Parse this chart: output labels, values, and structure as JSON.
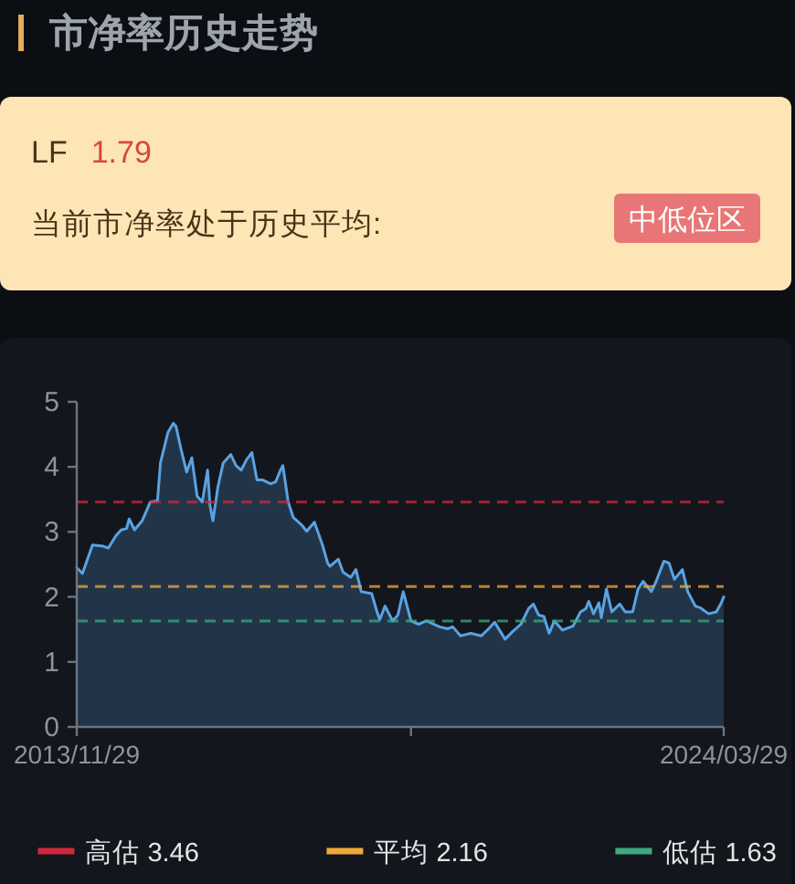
{
  "chart_data": {
    "type": "area",
    "title": "市净率历史走势",
    "annotations": [
      "LF",
      "1.79",
      "当前市净率处于历史平均:",
      "中低位区"
    ],
    "x": [
      "2013-11-29",
      "2014-01-01",
      "2014-03-01",
      "2014-05-01",
      "2014-06-01",
      "2014-07-15",
      "2014-08-15",
      "2014-09-15",
      "2014-10-01",
      "2014-11-01",
      "2014-12-15",
      "2015-02-01",
      "2015-03-15",
      "2015-04-01",
      "2015-05-15",
      "2015-06-15",
      "2015-07-01",
      "2015-08-01",
      "2015-09-01",
      "2015-10-01",
      "2015-11-01",
      "2015-12-01",
      "2016-01-01",
      "2016-01-15",
      "2016-02-01",
      "2016-03-01",
      "2016-04-01",
      "2016-05-15",
      "2016-06-15",
      "2016-07-15",
      "2016-08-15",
      "2016-09-15",
      "2016-10-15",
      "2016-11-15",
      "2017-01-01",
      "2017-02-01",
      "2017-03-01",
      "2017-03-15",
      "2017-04-15",
      "2017-05-15",
      "2017-07-01",
      "2017-08-01",
      "2017-09-15",
      "2017-11-01",
      "2017-12-01",
      "2017-12-15",
      "2018-02-01",
      "2018-03-01",
      "2018-04-15",
      "2018-05-15",
      "2018-06-15",
      "2018-08-15",
      "2018-09-15",
      "2018-10-01",
      "2018-11-01",
      "2018-12-15",
      "2019-01-15",
      "2019-02-15",
      "2019-04-01",
      "2019-05-15",
      "2019-07-01",
      "2019-09-15",
      "2019-11-01",
      "2019-12-01",
      "2020-01-15",
      "2020-03-15",
      "2020-05-15",
      "2020-07-01",
      "2020-08-01",
      "2020-10-01",
      "2020-11-15",
      "2021-01-01",
      "2021-02-15",
      "2021-03-15",
      "2021-04-15",
      "2021-05-15",
      "2021-06-15",
      "2021-07-15",
      "2021-09-01",
      "2021-11-01",
      "2021-12-15",
      "2022-01-15",
      "2022-02-01",
      "2022-03-01",
      "2022-04-01",
      "2022-04-15",
      "2022-05-15",
      "2022-06-15",
      "2022-08-01",
      "2022-09-01",
      "2022-10-15",
      "2022-11-15",
      "2022-12-15",
      "2023-02-01",
      "2023-03-01",
      "2023-04-15",
      "2023-05-15",
      "2023-06-15",
      "2023-08-01",
      "2023-09-01",
      "2023-10-15",
      "2023-11-15",
      "2024-01-01",
      "2024-02-15",
      "2024-03-15",
      "2024-03-29"
    ],
    "values": [
      2.45,
      2.36,
      2.8,
      2.78,
      2.75,
      2.94,
      3.03,
      3.05,
      3.2,
      3.03,
      3.17,
      3.46,
      3.48,
      4.06,
      4.53,
      4.67,
      4.62,
      4.25,
      3.92,
      4.14,
      3.55,
      3.46,
      3.95,
      3.41,
      3.17,
      3.69,
      4.06,
      4.19,
      4.02,
      3.95,
      4.11,
      4.22,
      3.8,
      3.8,
      3.74,
      3.77,
      3.95,
      4.02,
      3.46,
      3.22,
      3.11,
      3.01,
      3.15,
      2.8,
      2.52,
      2.47,
      2.58,
      2.38,
      2.3,
      2.42,
      2.08,
      2.05,
      1.77,
      1.65,
      1.86,
      1.63,
      1.72,
      2.08,
      1.63,
      1.58,
      1.63,
      1.54,
      1.51,
      1.54,
      1.4,
      1.44,
      1.4,
      1.52,
      1.61,
      1.35,
      1.47,
      1.58,
      1.82,
      1.89,
      1.72,
      1.7,
      1.44,
      1.63,
      1.49,
      1.55,
      1.77,
      1.82,
      1.93,
      1.74,
      1.91,
      1.68,
      2.12,
      1.77,
      1.89,
      1.77,
      1.77,
      2.12,
      2.24,
      2.08,
      2.24,
      2.55,
      2.52,
      2.27,
      2.42,
      2.08,
      1.86,
      1.83,
      1.74,
      1.77,
      1.91,
      2.0
    ],
    "color": "#5aa2e2",
    "xlim": [
      "2013-11-29",
      "2024-03-29"
    ],
    "xticks": [
      {
        "value": "2013-11-29",
        "label": "2013/11/29"
      },
      {
        "value": "2019-04-01",
        "label": null
      },
      {
        "value": "2024-03-29",
        "label": "2024/03/29"
      }
    ],
    "ylim": [
      0,
      5
    ],
    "yticks": [
      0,
      1,
      2,
      3,
      4,
      5
    ],
    "ref_lines": [
      {
        "axis": "y",
        "value": 3.46,
        "label": "高估 3.46",
        "color": "#d0283c",
        "line_style": "dashed"
      },
      {
        "axis": "y",
        "value": 2.16,
        "label": "平均 2.16",
        "color": "#f0a838",
        "line_style": "dashed"
      },
      {
        "axis": "y",
        "value": 1.63,
        "label": "低估 1.63",
        "color": "#3fa880",
        "line_style": "dashed"
      }
    ],
    "legend": "bottom"
  }
}
